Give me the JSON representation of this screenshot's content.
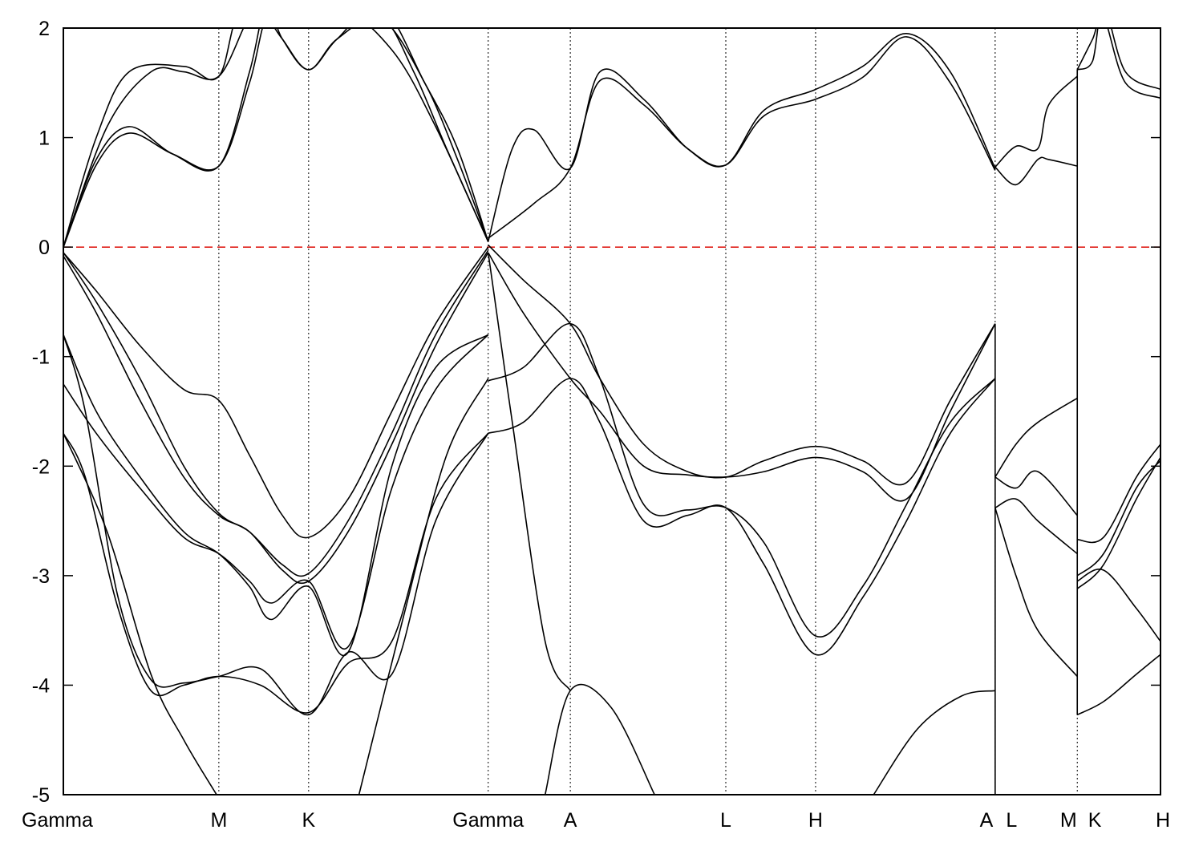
{
  "chart_data": {
    "type": "line",
    "title": "",
    "xlabel": "",
    "ylabel": "",
    "ylim": [
      -5,
      2
    ],
    "xlim": [
      0,
      10.02
    ],
    "yticks": [
      2,
      1,
      0,
      -1,
      -2,
      -3,
      -4,
      -5
    ],
    "ytick_labels": [
      "2",
      "1",
      "0",
      "-1",
      "-2",
      "-3",
      "-4",
      "-5"
    ],
    "kpoints": [
      {
        "label": "Gamma",
        "x": 0.0
      },
      {
        "label": "M",
        "x": 1.42
      },
      {
        "label": "K",
        "x": 2.24
      },
      {
        "label": "Gamma",
        "x": 3.88
      },
      {
        "label": "A",
        "x": 4.63
      },
      {
        "label": "L",
        "x": 6.05
      },
      {
        "label": "H",
        "x": 6.87
      },
      {
        "label": "A",
        "x": 8.51
      },
      {
        "label": "L",
        "x": 8.51
      },
      {
        "label": "M",
        "x": 9.26
      },
      {
        "label": "K",
        "x": 9.26
      },
      {
        "label": "H",
        "x": 10.02
      }
    ],
    "kpoint_labels": [
      {
        "text": "Gamma",
        "x": 0.0,
        "anchor": "start"
      },
      {
        "text": "M",
        "x": 1.42,
        "anchor": "middle"
      },
      {
        "text": "K",
        "x": 2.24,
        "anchor": "middle"
      },
      {
        "text": "Gamma",
        "x": 3.88,
        "anchor": "middle"
      },
      {
        "text": "A",
        "x": 4.63,
        "anchor": "middle"
      },
      {
        "text": "L",
        "x": 6.05,
        "anchor": "middle"
      },
      {
        "text": "H",
        "x": 6.87,
        "anchor": "middle"
      },
      {
        "text": "A",
        "x": 8.43,
        "anchor": "middle"
      },
      {
        "text": "L",
        "x": 8.66,
        "anchor": "middle"
      },
      {
        "text": "M",
        "x": 9.18,
        "anchor": "middle"
      },
      {
        "text": "K",
        "x": 9.42,
        "anchor": "middle"
      },
      {
        "text": "H",
        "x": 10.02,
        "anchor": "end"
      }
    ],
    "fermi_level": 0,
    "fermi_color": "#e0201a",
    "band_color": "#000000",
    "series": [
      {
        "x": [
          0,
          0.4,
          0.8,
          1.1,
          1.42,
          1.7,
          1.85,
          2.0,
          2.24,
          2.5,
          2.9,
          3.3,
          3.6,
          3.88
        ],
        "y": [
          0,
          1.1,
          1.6,
          1.6,
          1.56,
          2.1,
          2.1,
          1.9,
          1.62,
          1.9,
          2.2,
          1.5,
          0.9,
          0.05
        ]
      },
      {
        "x": [
          0,
          0.3,
          0.6,
          1.0,
          1.42,
          1.7,
          1.85,
          2.0,
          2.24,
          2.5,
          2.9,
          3.2,
          3.5,
          3.88
        ],
        "y": [
          0,
          0.8,
          1.1,
          0.85,
          0.74,
          1.6,
          2.2,
          1.9,
          1.62,
          1.9,
          2.1,
          1.6,
          0.9,
          0.05
        ]
      },
      {
        "x": [
          0,
          0.3,
          0.6,
          1.0,
          1.42,
          1.7,
          1.9,
          2.3,
          2.9,
          3.3,
          3.6,
          3.88
        ],
        "y": [
          0,
          0.75,
          1.04,
          0.85,
          0.74,
          1.5,
          2.2,
          2.3,
          2.1,
          1.5,
          0.8,
          0.05
        ]
      },
      {
        "x": [
          0,
          0.3,
          0.6,
          1.1,
          1.42,
          1.7,
          2.5,
          3.0,
          3.4,
          3.88
        ],
        "y": [
          0,
          1.0,
          1.6,
          1.65,
          1.56,
          2.3,
          2.2,
          1.8,
          1.1,
          0.05
        ]
      },
      {
        "x": [
          3.88,
          4.1,
          4.3,
          4.63,
          4.9,
          5.3,
          5.7,
          6.05,
          6.4,
          6.87,
          7.3,
          7.7,
          8.1,
          8.51
        ],
        "y": [
          0.05,
          0.9,
          1.07,
          0.72,
          1.6,
          1.35,
          0.9,
          0.75,
          1.25,
          1.44,
          1.65,
          1.95,
          1.6,
          0.72
        ]
      },
      {
        "x": [
          3.88,
          4.3,
          4.63,
          4.9,
          5.3,
          5.7,
          6.05,
          6.4,
          6.87,
          7.3,
          7.7,
          8.1,
          8.51
        ],
        "y": [
          0.08,
          0.4,
          0.72,
          1.52,
          1.3,
          0.9,
          0.75,
          1.2,
          1.35,
          1.55,
          1.92,
          1.5,
          0.7
        ]
      },
      {
        "x": [
          8.51,
          8.7,
          8.9,
          9.0,
          9.26
        ],
        "y": [
          0.73,
          0.92,
          0.9,
          1.3,
          1.56
        ]
      },
      {
        "x": [
          8.51,
          8.7,
          8.9,
          9.0,
          9.26
        ],
        "y": [
          0.73,
          0.57,
          0.8,
          0.8,
          0.74
        ]
      },
      {
        "x": [
          9.26,
          9.4,
          9.5,
          9.7,
          10.02
        ],
        "y": [
          1.62,
          1.7,
          2.2,
          1.6,
          1.44
        ]
      },
      {
        "x": [
          9.26,
          9.4,
          9.5,
          9.7,
          10.02
        ],
        "y": [
          1.62,
          1.9,
          2.1,
          1.5,
          1.36
        ]
      },
      {
        "x": [
          0,
          0.3,
          0.7,
          1.1,
          1.42,
          1.7,
          2.0,
          2.24,
          2.6,
          3.0,
          3.4,
          3.88
        ],
        "y": [
          -0.05,
          -0.4,
          -0.9,
          -1.3,
          -1.4,
          -1.9,
          -2.45,
          -2.65,
          -2.3,
          -1.5,
          -0.7,
          0.0
        ]
      },
      {
        "x": [
          0,
          0.3,
          0.7,
          1.1,
          1.42,
          1.7,
          2.0,
          2.24,
          2.6,
          3.0,
          3.4,
          3.88
        ],
        "y": [
          -0.05,
          -0.5,
          -1.2,
          -2.0,
          -2.43,
          -2.6,
          -2.9,
          -2.98,
          -2.5,
          -1.7,
          -0.8,
          -0.03
        ]
      },
      {
        "x": [
          0,
          0.3,
          0.7,
          1.1,
          1.42,
          1.7,
          2.0,
          2.24,
          2.6,
          3.0,
          3.4,
          3.88
        ],
        "y": [
          -0.08,
          -0.6,
          -1.4,
          -2.1,
          -2.45,
          -2.6,
          -2.95,
          -3.05,
          -2.6,
          -1.8,
          -0.9,
          -0.05
        ]
      },
      {
        "x": [
          0,
          0.3,
          0.7,
          1.1,
          1.42,
          1.7,
          1.9,
          2.24,
          2.6,
          3.0,
          3.4,
          3.88
        ],
        "y": [
          -0.8,
          -1.5,
          -2.1,
          -2.6,
          -2.8,
          -3.1,
          -3.4,
          -3.1,
          -3.7,
          -2.0,
          -1.1,
          -0.8
        ]
      },
      {
        "x": [
          0,
          0.3,
          0.7,
          1.1,
          1.42,
          1.7,
          1.9,
          2.24,
          2.6,
          3.0,
          3.4,
          3.88
        ],
        "y": [
          -1.25,
          -1.7,
          -2.2,
          -2.65,
          -2.8,
          -3.05,
          -3.25,
          -3.05,
          -3.65,
          -2.2,
          -1.3,
          -0.8
        ]
      },
      {
        "x": [
          0,
          0.2,
          0.5,
          0.8,
          1.1,
          1.42,
          1.8,
          2.24,
          2.6,
          3.0,
          3.4,
          3.88
        ],
        "y": [
          -0.8,
          -1.5,
          -3.2,
          -3.95,
          -3.98,
          -3.92,
          -3.85,
          -4.27,
          -3.7,
          -3.9,
          -2.5,
          -1.7
        ]
      },
      {
        "x": [
          0,
          0.2,
          0.5,
          0.8,
          1.1,
          1.42,
          1.8,
          2.24,
          2.6,
          3.0,
          3.4,
          3.88
        ],
        "y": [
          -1.7,
          -2.1,
          -3.3,
          -4.05,
          -4.0,
          -3.92,
          -4.0,
          -4.25,
          -3.8,
          -3.6,
          -2.3,
          -1.7
        ]
      },
      {
        "x": [
          0,
          0.4,
          0.8,
          1.1,
          1.4
        ],
        "y": [
          -1.7,
          -2.6,
          -3.9,
          -4.5,
          -5.0
        ]
      },
      {
        "x": [
          2.7,
          3.1,
          3.5,
          3.88
        ],
        "y": [
          -5.0,
          -3.4,
          -1.9,
          -1.2
        ]
      },
      {
        "x": [
          3.88,
          4.2,
          4.63,
          4.9,
          5.3,
          5.7,
          6.05,
          6.4,
          6.87,
          7.3,
          7.7,
          8.1,
          8.51
        ],
        "y": [
          0.02,
          -0.3,
          -0.7,
          -1.2,
          -1.8,
          -2.05,
          -2.1,
          -1.95,
          -1.82,
          -1.95,
          -2.15,
          -1.4,
          -0.7
        ]
      },
      {
        "x": [
          3.88,
          4.2,
          4.63,
          4.9,
          5.3,
          5.7,
          6.05,
          6.4,
          6.87,
          7.3,
          7.7,
          8.1,
          8.51
        ],
        "y": [
          -0.05,
          -0.6,
          -1.2,
          -1.5,
          -2.0,
          -2.08,
          -2.1,
          -2.05,
          -1.92,
          -2.05,
          -2.3,
          -1.5,
          -0.7
        ]
      },
      {
        "x": [
          3.88,
          4.2,
          4.63,
          4.9,
          5.3,
          5.7,
          6.05,
          6.4,
          6.87,
          7.3,
          7.7,
          8.1,
          8.51
        ],
        "y": [
          -1.22,
          -1.1,
          -0.7,
          -1.2,
          -2.35,
          -2.4,
          -2.38,
          -2.7,
          -3.55,
          -3.1,
          -2.35,
          -1.6,
          -1.2
        ]
      },
      {
        "x": [
          3.88,
          4.2,
          4.63,
          4.9,
          5.3,
          5.7,
          6.05,
          6.4,
          6.87,
          7.3,
          7.7,
          8.1,
          8.51
        ],
        "y": [
          -1.7,
          -1.6,
          -1.2,
          -1.6,
          -2.5,
          -2.45,
          -2.38,
          -2.9,
          -3.72,
          -3.2,
          -2.5,
          -1.7,
          -1.2
        ]
      },
      {
        "x": [
          3.88,
          4.1,
          4.4,
          4.63
        ],
        "y": [
          -0.05,
          -1.6,
          -3.6,
          -4.05
        ]
      },
      {
        "x": [
          4.4,
          4.63,
          5.0,
          5.4
        ],
        "y": [
          -5.0,
          -4.05,
          -4.2,
          -5.0
        ]
      },
      {
        "x": [
          7.4,
          7.8,
          8.2,
          8.51
        ],
        "y": [
          -5.0,
          -4.4,
          -4.1,
          -4.05
        ]
      },
      {
        "x": [
          8.51,
          8.7,
          8.9,
          9.26
        ],
        "y": [
          -2.1,
          -1.8,
          -1.6,
          -1.38
        ]
      },
      {
        "x": [
          8.51,
          8.7,
          8.9,
          9.26
        ],
        "y": [
          -2.1,
          -2.2,
          -2.05,
          -2.45
        ]
      },
      {
        "x": [
          8.51,
          8.7,
          8.9,
          9.26
        ],
        "y": [
          -2.38,
          -2.3,
          -2.5,
          -2.8
        ]
      },
      {
        "x": [
          8.51,
          8.7,
          8.9,
          9.26
        ],
        "y": [
          -2.38,
          -3.0,
          -3.5,
          -3.92
        ]
      },
      {
        "x": [
          9.26,
          9.5,
          9.8,
          10.02
        ],
        "y": [
          -2.67,
          -2.65,
          -2.1,
          -1.8
        ]
      },
      {
        "x": [
          9.26,
          9.5,
          9.8,
          10.02
        ],
        "y": [
          -3.0,
          -2.8,
          -2.2,
          -1.95
        ]
      },
      {
        "x": [
          9.26,
          9.5,
          9.8,
          10.02
        ],
        "y": [
          -3.05,
          -2.95,
          -3.3,
          -3.6
        ]
      },
      {
        "x": [
          9.26,
          9.5,
          9.8,
          10.02
        ],
        "y": [
          -3.12,
          -2.9,
          -2.3,
          -1.92
        ]
      },
      {
        "x": [
          9.26,
          9.5,
          9.8,
          10.02
        ],
        "y": [
          -4.27,
          -4.15,
          -3.9,
          -3.72
        ]
      }
    ]
  }
}
